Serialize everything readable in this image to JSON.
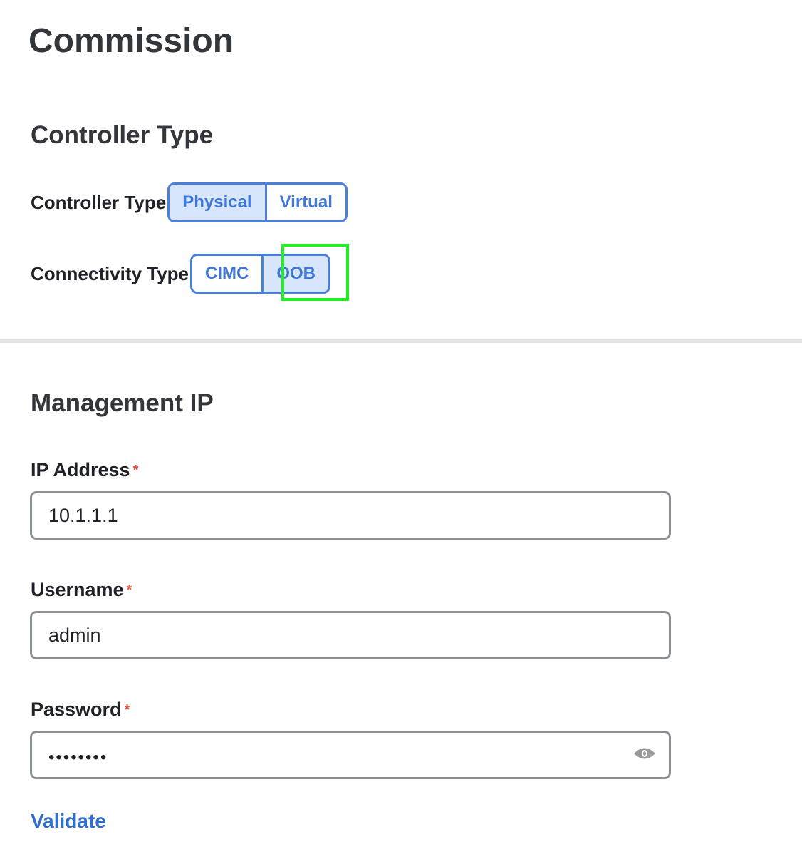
{
  "page_title": "Commission",
  "controller_section": {
    "heading": "Controller Type",
    "controller_type": {
      "label": "Controller Type",
      "options": [
        "Physical",
        "Virtual"
      ],
      "selected": "Physical"
    },
    "connectivity_type": {
      "label": "Connectivity Type",
      "options": [
        "CIMC",
        "OOB"
      ],
      "selected": "OOB"
    }
  },
  "management_section": {
    "heading": "Management IP",
    "ip_address": {
      "label": "IP Address",
      "required_mark": "*",
      "value": "10.1.1.1"
    },
    "username": {
      "label": "Username",
      "required_mark": "*",
      "value": "admin"
    },
    "password": {
      "label": "Password",
      "required_mark": "*",
      "masked_value": "••••••••",
      "reveal_icon": "eye-icon"
    }
  },
  "validate_label": "Validate",
  "colors": {
    "accent": "#4a7fdc",
    "selected_bg": "#d8e6fb",
    "required": "#e0533d",
    "highlight": "#1ff01f"
  }
}
